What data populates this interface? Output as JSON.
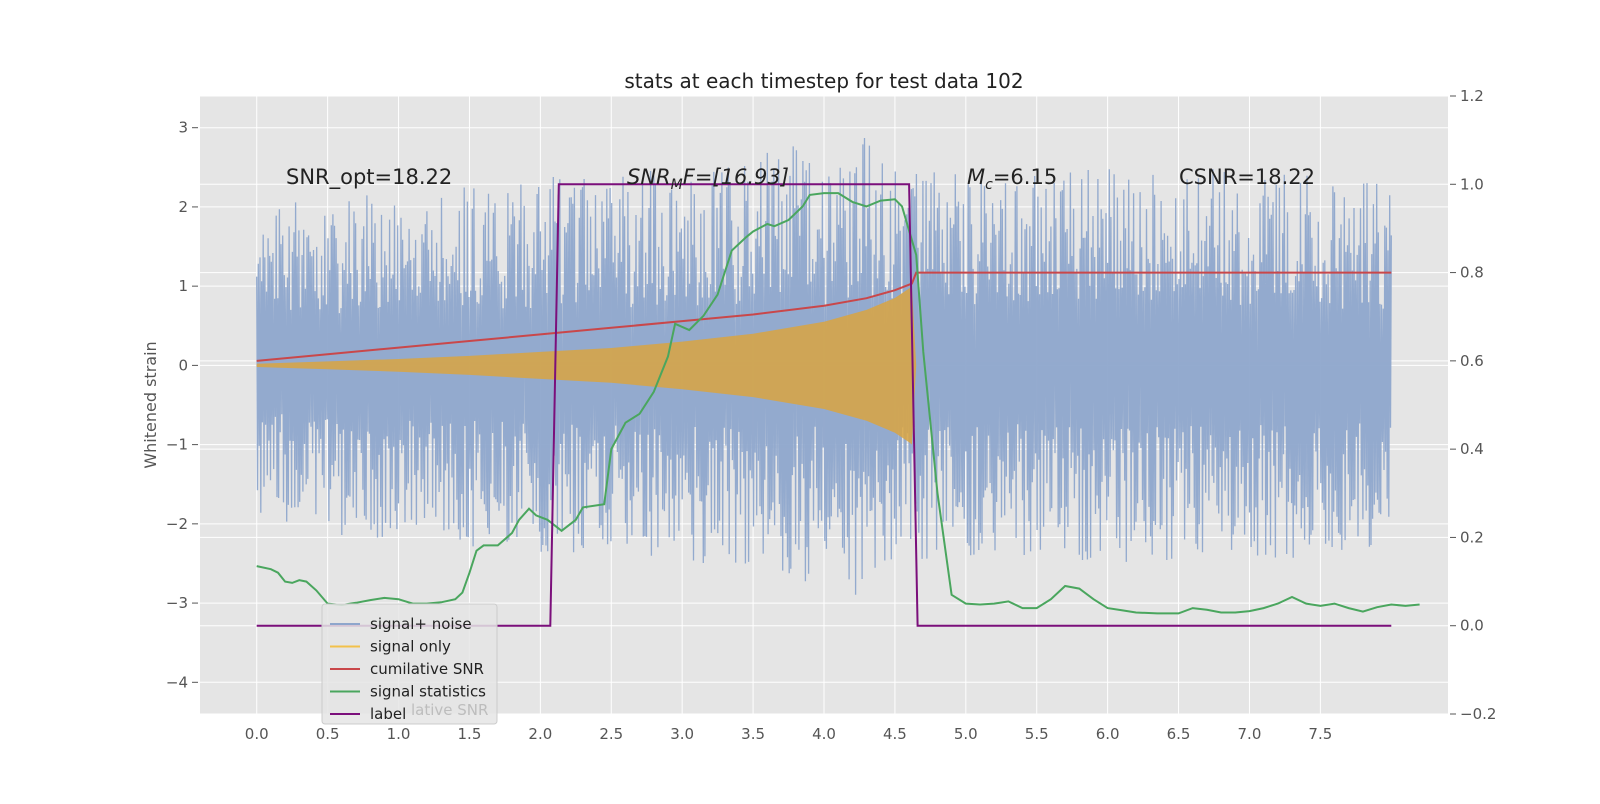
{
  "chart_data": {
    "type": "line",
    "title": "stats at each timestep for test data 102",
    "ylabel": "Whitened strain",
    "xlabel": "",
    "xlim": [
      -0.4,
      8.4
    ],
    "ylim": [
      -4.4,
      3.4
    ],
    "y2lim": [
      -0.2,
      1.2
    ],
    "grid": true,
    "x_ticks": [
      "0.0",
      "0.5",
      "1.0",
      "1.5",
      "2.0",
      "2.5",
      "3.0",
      "3.5",
      "4.0",
      "4.5",
      "5.0",
      "5.5",
      "6.0",
      "6.5",
      "7.0",
      "7.5"
    ],
    "y_ticks": [
      "3",
      "2",
      "1",
      "0",
      "−1",
      "−2",
      "−3",
      "−4"
    ],
    "y2_ticks": [
      "1.2",
      "1.0",
      "0.8",
      "0.6",
      "0.4",
      "0.2",
      "0.0",
      "−0.2"
    ],
    "annotations": [
      {
        "id": "snr-opt",
        "text": "SNR_opt=18.22"
      },
      {
        "id": "snr-mf",
        "prefix": "SNR",
        "sub": "M",
        "suffix": "F=[16.93]"
      },
      {
        "id": "mc",
        "prefix": "M",
        "sub": "c",
        "suffix": "=6.15"
      },
      {
        "id": "csnr",
        "text": "CSNR=18.22"
      }
    ],
    "legend": {
      "placement": "lower-left",
      "entries": [
        {
          "label": "signal+ noise",
          "color": "#8ea6cc"
        },
        {
          "label": "signal only",
          "color": "#f2c14a"
        },
        {
          "label": "cumilative SNR",
          "color": "#c9474a"
        },
        {
          "label": "signal statistics",
          "color": "#4aa65e"
        },
        {
          "label": "label",
          "color": "#7b0f7b"
        }
      ],
      "ghost_text": "lative SNR"
    },
    "series": [
      {
        "name": "signal+ noise",
        "axis": "left",
        "color": "#8ea6cc",
        "envelope": [
          [
            0.0,
            1.9
          ],
          [
            0.5,
            2.2
          ],
          [
            1.0,
            2.2
          ],
          [
            1.5,
            2.3
          ],
          [
            2.0,
            2.4
          ],
          [
            2.5,
            2.4
          ],
          [
            3.0,
            2.5
          ],
          [
            3.5,
            2.6
          ],
          [
            3.8,
            3.0
          ],
          [
            4.0,
            2.3
          ],
          [
            4.24,
            3.0
          ],
          [
            4.5,
            2.5
          ],
          [
            5.0,
            2.4
          ],
          [
            5.5,
            2.4
          ],
          [
            6.0,
            2.5
          ],
          [
            6.5,
            2.5
          ],
          [
            7.0,
            2.5
          ],
          [
            7.5,
            2.4
          ],
          [
            8.0,
            2.3
          ]
        ]
      },
      {
        "name": "signal only",
        "axis": "left",
        "color": "#d9a441",
        "envelope": [
          [
            0.0,
            0.02
          ],
          [
            0.5,
            0.05
          ],
          [
            1.0,
            0.08
          ],
          [
            1.5,
            0.12
          ],
          [
            2.0,
            0.17
          ],
          [
            2.5,
            0.22
          ],
          [
            3.0,
            0.3
          ],
          [
            3.5,
            0.4
          ],
          [
            4.0,
            0.55
          ],
          [
            4.3,
            0.7
          ],
          [
            4.5,
            0.85
          ],
          [
            4.6,
            0.97
          ],
          [
            4.62,
            1.0
          ],
          [
            4.65,
            0.0
          ]
        ]
      },
      {
        "name": "cumilative SNR",
        "axis": "right",
        "color": "#c9474a",
        "points": [
          [
            0.0,
            0.6
          ],
          [
            0.5,
            0.615
          ],
          [
            1.0,
            0.63
          ],
          [
            1.5,
            0.645
          ],
          [
            2.0,
            0.66
          ],
          [
            2.5,
            0.675
          ],
          [
            3.0,
            0.69
          ],
          [
            3.5,
            0.705
          ],
          [
            4.0,
            0.725
          ],
          [
            4.3,
            0.742
          ],
          [
            4.5,
            0.76
          ],
          [
            4.62,
            0.775
          ],
          [
            4.65,
            0.8
          ],
          [
            8.0,
            0.8
          ]
        ]
      },
      {
        "name": "signal statistics",
        "axis": "right",
        "color": "#4aa65e",
        "points": [
          [
            0.0,
            0.135
          ],
          [
            0.1,
            0.128
          ],
          [
            0.15,
            0.12
          ],
          [
            0.2,
            0.1
          ],
          [
            0.25,
            0.097
          ],
          [
            0.3,
            0.103
          ],
          [
            0.35,
            0.1
          ],
          [
            0.42,
            0.08
          ],
          [
            0.5,
            0.05
          ],
          [
            0.6,
            0.047
          ],
          [
            0.7,
            0.052
          ],
          [
            0.8,
            0.058
          ],
          [
            0.9,
            0.063
          ],
          [
            1.0,
            0.06
          ],
          [
            1.1,
            0.05
          ],
          [
            1.2,
            0.05
          ],
          [
            1.3,
            0.053
          ],
          [
            1.4,
            0.06
          ],
          [
            1.45,
            0.075
          ],
          [
            1.5,
            0.12
          ],
          [
            1.55,
            0.17
          ],
          [
            1.6,
            0.182
          ],
          [
            1.7,
            0.182
          ],
          [
            1.8,
            0.21
          ],
          [
            1.85,
            0.24
          ],
          [
            1.92,
            0.265
          ],
          [
            1.97,
            0.25
          ],
          [
            2.05,
            0.24
          ],
          [
            2.15,
            0.215
          ],
          [
            2.25,
            0.24
          ],
          [
            2.3,
            0.268
          ],
          [
            2.45,
            0.275
          ],
          [
            2.5,
            0.4
          ],
          [
            2.6,
            0.46
          ],
          [
            2.7,
            0.48
          ],
          [
            2.8,
            0.53
          ],
          [
            2.9,
            0.61
          ],
          [
            2.95,
            0.684
          ],
          [
            3.05,
            0.67
          ],
          [
            3.15,
            0.702
          ],
          [
            3.25,
            0.75
          ],
          [
            3.35,
            0.85
          ],
          [
            3.45,
            0.88
          ],
          [
            3.5,
            0.893
          ],
          [
            3.6,
            0.91
          ],
          [
            3.65,
            0.905
          ],
          [
            3.75,
            0.919
          ],
          [
            3.85,
            0.95
          ],
          [
            3.9,
            0.976
          ],
          [
            4.0,
            0.98
          ],
          [
            4.1,
            0.98
          ],
          [
            4.2,
            0.96
          ],
          [
            4.3,
            0.95
          ],
          [
            4.4,
            0.963
          ],
          [
            4.5,
            0.966
          ],
          [
            4.55,
            0.95
          ],
          [
            4.65,
            0.84
          ],
          [
            4.7,
            0.62
          ],
          [
            4.8,
            0.3
          ],
          [
            4.9,
            0.07
          ],
          [
            5.0,
            0.05
          ],
          [
            5.1,
            0.048
          ],
          [
            5.2,
            0.05
          ],
          [
            5.3,
            0.055
          ],
          [
            5.4,
            0.04
          ],
          [
            5.5,
            0.04
          ],
          [
            5.6,
            0.06
          ],
          [
            5.7,
            0.09
          ],
          [
            5.8,
            0.084
          ],
          [
            5.9,
            0.06
          ],
          [
            6.0,
            0.04
          ],
          [
            6.1,
            0.035
          ],
          [
            6.2,
            0.03
          ],
          [
            6.35,
            0.028
          ],
          [
            6.5,
            0.028
          ],
          [
            6.6,
            0.04
          ],
          [
            6.7,
            0.036
          ],
          [
            6.8,
            0.03
          ],
          [
            6.9,
            0.03
          ],
          [
            7.0,
            0.033
          ],
          [
            7.1,
            0.04
          ],
          [
            7.2,
            0.05
          ],
          [
            7.3,
            0.065
          ],
          [
            7.4,
            0.05
          ],
          [
            7.5,
            0.045
          ],
          [
            7.6,
            0.05
          ],
          [
            7.7,
            0.04
          ],
          [
            7.8,
            0.032
          ],
          [
            7.9,
            0.042
          ],
          [
            8.0,
            0.048
          ],
          [
            8.1,
            0.045
          ],
          [
            8.2,
            0.048
          ]
        ]
      },
      {
        "name": "label",
        "axis": "right",
        "color": "#7b0f7b",
        "points": [
          [
            0.0,
            0.0
          ],
          [
            2.07,
            0.0
          ],
          [
            2.13,
            1.0
          ],
          [
            4.6,
            1.0
          ],
          [
            4.66,
            0.0
          ],
          [
            8.0,
            0.0
          ]
        ]
      }
    ]
  }
}
